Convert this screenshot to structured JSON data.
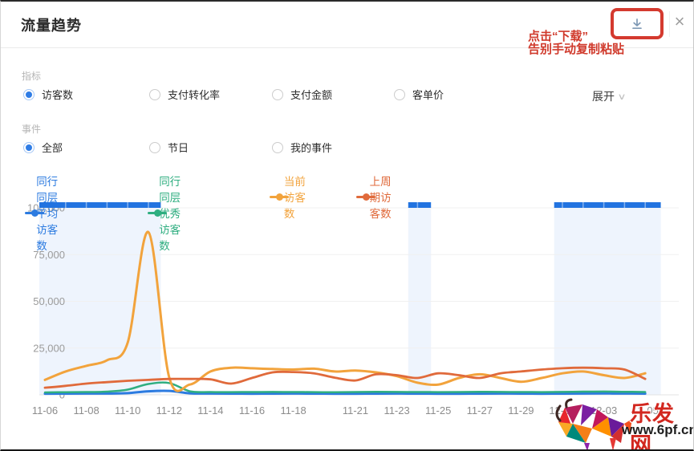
{
  "header": {
    "title": "流量趋势",
    "close_glyph": "×"
  },
  "annotation": {
    "line1": "点击“下载”",
    "line2": "告别手动复制粘贴",
    "color": "#d03a2c"
  },
  "metrics": {
    "label": "指标",
    "options": [
      {
        "label": "访客数",
        "selected": true
      },
      {
        "label": "支付转化率",
        "selected": false
      },
      {
        "label": "支付金额",
        "selected": false
      },
      {
        "label": "客单价",
        "selected": false
      }
    ],
    "expand_label": "展开"
  },
  "events": {
    "label": "事件",
    "options": [
      {
        "label": "全部",
        "selected": true
      },
      {
        "label": "节日",
        "selected": false
      },
      {
        "label": "我的事件",
        "selected": false
      }
    ]
  },
  "legend": [
    {
      "label": "同行同层平均访客数",
      "color": "#2c7be0"
    },
    {
      "label": "同行同层优秀访客数",
      "color": "#2fae80"
    },
    {
      "label": "当前访客数",
      "color": "#f2a33c"
    },
    {
      "label": "上周期访客数",
      "color": "#e06a3b"
    }
  ],
  "ui_colors": {
    "accent_blue": "#2f7ce5",
    "highlight_red": "#d43a2f",
    "event_bar_blue": "#2273e0",
    "event_band_fill": "rgba(34,115,224,0.08)"
  },
  "chart_data": {
    "type": "line",
    "title": "",
    "xlabel": "",
    "ylabel": "",
    "ylim": [
      0,
      100000
    ],
    "y_ticks": [
      0,
      25000,
      50000,
      75000,
      100000
    ],
    "grid": true,
    "legend_position": "top",
    "x_labels": [
      {
        "text": "11-06",
        "day": 0
      },
      {
        "text": "11-08",
        "day": 2
      },
      {
        "text": "11-10",
        "day": 4
      },
      {
        "text": "11-12",
        "day": 6
      },
      {
        "text": "11-14",
        "day": 8
      },
      {
        "text": "11-16",
        "day": 10
      },
      {
        "text": "11-18",
        "day": 12
      },
      {
        "text": "11-21",
        "day": 15
      },
      {
        "text": "11-23",
        "day": 17
      },
      {
        "text": "11-25",
        "day": 19
      },
      {
        "text": "11-27",
        "day": 21
      },
      {
        "text": "11-29",
        "day": 23
      },
      {
        "text": "12-01",
        "day": 25
      },
      {
        "text": "12-03",
        "day": 27
      },
      {
        "text": "12-05",
        "day": 29
      }
    ],
    "event_bands": [
      {
        "from_day": -0.27,
        "to_day": 5.6
      },
      {
        "from_day": 17.55,
        "to_day": 18.65
      },
      {
        "from_day": 24.6,
        "to_day": 29.75
      }
    ],
    "series": [
      {
        "name": "同行同层平均访客数",
        "color": "#2c7be0",
        "width": 3,
        "values": [
          600,
          650,
          700,
          700,
          900,
          1900,
          2100,
          800,
          700,
          650,
          600,
          650,
          700,
          650,
          600,
          600,
          650,
          700,
          650,
          600,
          600,
          650,
          700,
          650,
          600,
          650,
          700,
          750,
          700,
          650
        ]
      },
      {
        "name": "同行同层优秀访客数",
        "color": "#2fae80",
        "width": 2.5,
        "values": [
          1300,
          1400,
          1500,
          1700,
          2800,
          5800,
          6300,
          1900,
          1500,
          1450,
          1500,
          1550,
          1500,
          1450,
          1400,
          1500,
          1600,
          1550,
          1500,
          1450,
          1500,
          1600,
          1550,
          1500,
          1450,
          1550,
          1700,
          1750,
          1650,
          1500
        ]
      },
      {
        "name": "当前访客数",
        "color": "#f2a33c",
        "width": 3,
        "values": [
          8000,
          12500,
          15500,
          18500,
          28000,
          87000,
          9500,
          5500,
          12500,
          14500,
          14200,
          13800,
          13500,
          14000,
          12500,
          13000,
          12000,
          10000,
          6500,
          5500,
          9000,
          11000,
          9000,
          7000,
          9000,
          11500,
          12500,
          10500,
          9000,
          11500
        ]
      },
      {
        "name": "上周期访客数",
        "color": "#e06a3b",
        "width": 2.8,
        "values": [
          3800,
          4800,
          6000,
          6800,
          7500,
          8000,
          8500,
          8500,
          8300,
          6000,
          9000,
          12000,
          12200,
          11500,
          9200,
          7700,
          11000,
          10500,
          9000,
          11500,
          10500,
          9000,
          11500,
          12500,
          13500,
          14200,
          14500,
          14200,
          13500,
          8500
        ]
      }
    ]
  },
  "watermark": {
    "site_name": "乐发网",
    "url": "www.6pf.cn"
  }
}
